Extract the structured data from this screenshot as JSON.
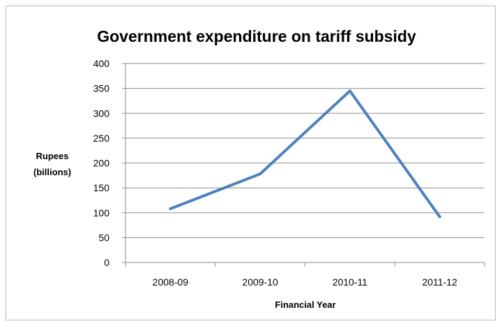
{
  "chart_data": {
    "type": "line",
    "title": "Government expenditure on tariff subsidy",
    "xlabel": "Financial  Year",
    "ylabel": [
      "Rupees",
      "(billions)"
    ],
    "categories": [
      "2008-09",
      "2009-10",
      "2010-11",
      "2011-12"
    ],
    "series": [
      {
        "values": [
          108,
          178,
          345,
          92
        ]
      }
    ],
    "ylim": [
      0,
      400
    ],
    "yticks": [
      0,
      50,
      100,
      150,
      200,
      250,
      300,
      350,
      400
    ],
    "grid": true,
    "legend": "none",
    "colors": {
      "series": "#4f81bd",
      "grid": "#8c8c8c"
    }
  }
}
